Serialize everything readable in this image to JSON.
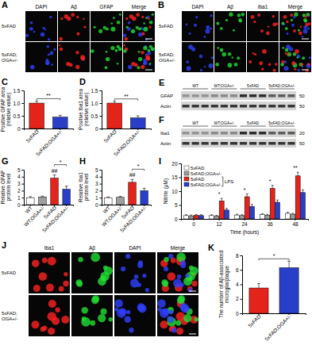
{
  "figure": {
    "image_panels": [
      {
        "letter": "A",
        "columns": [
          {
            "label": "DAPI",
            "color": "#3040ff"
          },
          {
            "label": "Aβ",
            "color": "#ff2222"
          },
          {
            "label": "GFAP",
            "color": "#22dd33"
          },
          {
            "label": "Merge"
          }
        ],
        "rows": [
          [
            "5xFAD"
          ],
          [
            "5xFAD;",
            "OGA+/-"
          ]
        ]
      },
      {
        "letter": "B",
        "columns": [
          {
            "label": "DAPI",
            "color": "#3040ff"
          },
          {
            "label": "Aβ",
            "color": "#22dd33"
          },
          {
            "label": "Iba1",
            "color": "#ff2222"
          },
          {
            "label": "Merge"
          }
        ],
        "rows": [
          [
            "5xFAD"
          ],
          [
            "5xFAD;",
            "OGA+/-"
          ]
        ]
      },
      {
        "letter": "J",
        "columns": [
          {
            "label": "Iba1",
            "color": "#ff2222"
          },
          {
            "label": "Aβ",
            "color": "#22dd33"
          },
          {
            "label": "DAPI",
            "color": "#3040ff"
          },
          {
            "label": "Merge"
          }
        ],
        "rows": [
          [
            "5xFAD"
          ],
          [
            "5xFAD;",
            "OGA+/-"
          ]
        ]
      }
    ],
    "blots": [
      {
        "letter": "E",
        "groups": [
          "WT",
          "WT;OGA+/-",
          "5xFAD",
          "5xFAD;OGA+/-"
        ],
        "rows": [
          {
            "label": "GFAP",
            "marker": 50
          },
          {
            "label": "Actin",
            "marker": 50
          }
        ]
      },
      {
        "letter": "F",
        "groups": [
          "WT",
          "WT;OGA+/-",
          "5xFAD",
          "5xFAD;OGA+/-"
        ],
        "rows": [
          {
            "label": "Iba1",
            "marker": 20
          },
          {
            "label": "Actin",
            "marker": 50
          }
        ]
      }
    ]
  },
  "chart_data": [
    {
      "panel": "C",
      "type": "bar",
      "categories": [
        "5xFAD",
        "5xFAD;OGA+/-"
      ],
      "values": [
        1,
        0.45
      ],
      "errors": [
        0.08,
        0.07
      ],
      "colors": [
        "#e4241b",
        "#2a3fc8"
      ],
      "y_label": [
        "Positive GFAP area",
        "(relative value)"
      ],
      "ylim": [
        0,
        1.5
      ],
      "yticks": [
        0,
        0.5,
        {
          "value": 1,
          "label": "1.0"
        },
        1.5
      ],
      "annotations": [
        {
          "text": "**",
          "over": [
            "5xFAD",
            "5xFAD;OGA+/-"
          ]
        }
      ]
    },
    {
      "panel": "D",
      "type": "bar",
      "categories": [
        "5xFAD",
        "5xFAD;OGA+/-"
      ],
      "values": [
        1,
        0.42
      ],
      "errors": [
        0.07,
        0.08
      ],
      "colors": [
        "#e4241b",
        "#2a3fc8"
      ],
      "y_label": [
        "Positive Iba1 area",
        "(relative value)"
      ],
      "ylim": [
        0,
        1.5
      ],
      "yticks": [
        0,
        0.5,
        {
          "value": 1,
          "label": "1.0"
        },
        1.5
      ],
      "annotations": [
        {
          "text": "**",
          "over": [
            "5xFAD",
            "5xFAD;OGA+/-"
          ]
        }
      ]
    },
    {
      "panel": "G",
      "type": "bar",
      "categories": [
        "WT",
        "WT;OGA+/-",
        "5xFAD",
        "5xFAD;OGA+/-"
      ],
      "values": [
        1,
        1.1,
        3.8,
        2.2
      ],
      "errors": [
        0.15,
        0.12,
        0.45,
        0.45
      ],
      "colors": [
        "#ffffff",
        "#9e9e9e",
        "#e4241b",
        "#2a3fc8"
      ],
      "y_label": [
        "Relative GFAP",
        "protein level"
      ],
      "ylim": [
        0,
        5
      ],
      "yticks": [
        0,
        1,
        2,
        3,
        4,
        5
      ],
      "annotations": [
        {
          "text": "##",
          "over": [
            "5xFAD"
          ]
        },
        {
          "text": "*",
          "over": [
            "5xFAD",
            "5xFAD;OGA+/-"
          ]
        }
      ]
    },
    {
      "panel": "H",
      "type": "bar",
      "categories": [
        "WT",
        "WT;OGA+/-",
        "5xFAD",
        "5xFAD;OGA+/-"
      ],
      "values": [
        1,
        1.05,
        3.2,
        2.0
      ],
      "errors": [
        0.1,
        0.12,
        0.4,
        0.35
      ],
      "colors": [
        "#ffffff",
        "#9e9e9e",
        "#e4241b",
        "#2a3fc8"
      ],
      "y_label": [
        "Relative Iba1",
        "protein level"
      ],
      "ylim": [
        0,
        5
      ],
      "yticks": [
        0,
        1,
        2,
        3,
        4,
        5
      ],
      "annotations": [
        {
          "text": "##",
          "over": [
            "5xFAD"
          ]
        },
        {
          "text": "*",
          "over": [
            "5xFAD",
            "5xFAD;OGA+/-"
          ]
        }
      ]
    },
    {
      "panel": "I",
      "type": "bar",
      "categories": [
        0,
        12,
        24,
        36,
        48
      ],
      "x_label": "Time (hours)",
      "y_label": [
        "Nitrite (μM)"
      ],
      "ylim": [
        0,
        20
      ],
      "yticks": [
        0,
        5,
        10,
        15,
        20
      ],
      "legend": "upper left",
      "legend_bracket": "LPS",
      "series": [
        {
          "name": "5xFAD",
          "color": "#ffffff",
          "values": [
            1.2,
            1.2,
            1.4,
            1.6,
            2.0
          ],
          "errors": [
            0.3,
            0.3,
            0.3,
            0.3,
            0.4
          ]
        },
        {
          "name": "5xFAD;OGA+/-",
          "color": "#9e9e9e",
          "values": [
            1.1,
            1.0,
            1.2,
            1.3,
            1.7
          ],
          "errors": [
            0.3,
            0.3,
            0.3,
            0.3,
            0.3
          ]
        },
        {
          "name": "5xFAD",
          "color": "#e4241b",
          "values": [
            1.3,
            6.5,
            8.0,
            11.0,
            15.5
          ],
          "errors": [
            0.3,
            0.9,
            1.0,
            1.1,
            1.3
          ]
        },
        {
          "name": "5xFAD;OGA+/-",
          "color": "#2a3fc8",
          "values": [
            1.2,
            3.2,
            4.5,
            6.0,
            9.5
          ],
          "errors": [
            0.3,
            0.6,
            0.7,
            0.8,
            1.0
          ]
        }
      ],
      "annotations": [
        {
          "text": "*",
          "over": [
            12
          ]
        },
        {
          "text": "*",
          "over": [
            24
          ]
        },
        {
          "text": "*",
          "over": [
            36
          ]
        },
        {
          "text": "**",
          "over": [
            48
          ]
        }
      ]
    },
    {
      "panel": "K",
      "type": "bar",
      "categories": [
        "5xFAD",
        "5xFAD;OGA+/-"
      ],
      "values": [
        3.5,
        6.3
      ],
      "errors": [
        0.6,
        0.9
      ],
      "colors": [
        "#e4241b",
        "#2a3fc8"
      ],
      "y_label": [
        "The number of Aβ-associated",
        "microglia/plaque"
      ],
      "ylim": [
        0,
        8
      ],
      "yticks": [
        0,
        2,
        4,
        6,
        8
      ],
      "annotations": [
        {
          "text": "*",
          "over": [
            "5xFAD",
            "5xFAD;OGA+/-"
          ]
        }
      ]
    }
  ]
}
